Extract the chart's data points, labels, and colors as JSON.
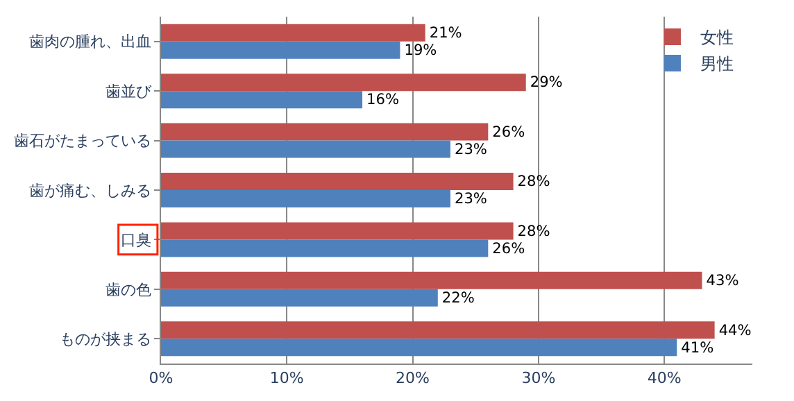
{
  "chart_data": {
    "type": "bar",
    "orientation": "horizontal",
    "categories": [
      "歯肉の腫れ、出血",
      "歯並び",
      "歯石がたまっている",
      "歯が痛む、しみる",
      "口臭",
      "歯の色",
      "ものが挟まる"
    ],
    "series": [
      {
        "name": "女性",
        "color": "#c0504d",
        "values": [
          21,
          29,
          26,
          28,
          28,
          43,
          44
        ],
        "value_labels": [
          "21%",
          "29%",
          "26%",
          "28%",
          "28%",
          "43%",
          "44%"
        ]
      },
      {
        "name": "男性",
        "color": "#4f81bd",
        "values": [
          19,
          16,
          23,
          23,
          26,
          22,
          41
        ],
        "value_labels": [
          "19%",
          "16%",
          "23%",
          "23%",
          "26%",
          "22%",
          "41%"
        ]
      }
    ],
    "xlim": [
      0,
      47
    ],
    "xticks": [
      {
        "value": 0,
        "label": "0%"
      },
      {
        "value": 10,
        "label": "10%"
      },
      {
        "value": 20,
        "label": "20%"
      },
      {
        "value": 30,
        "label": "30%"
      },
      {
        "value": 40,
        "label": "40%"
      }
    ],
    "grid": "x",
    "legend": "top right"
  }
}
